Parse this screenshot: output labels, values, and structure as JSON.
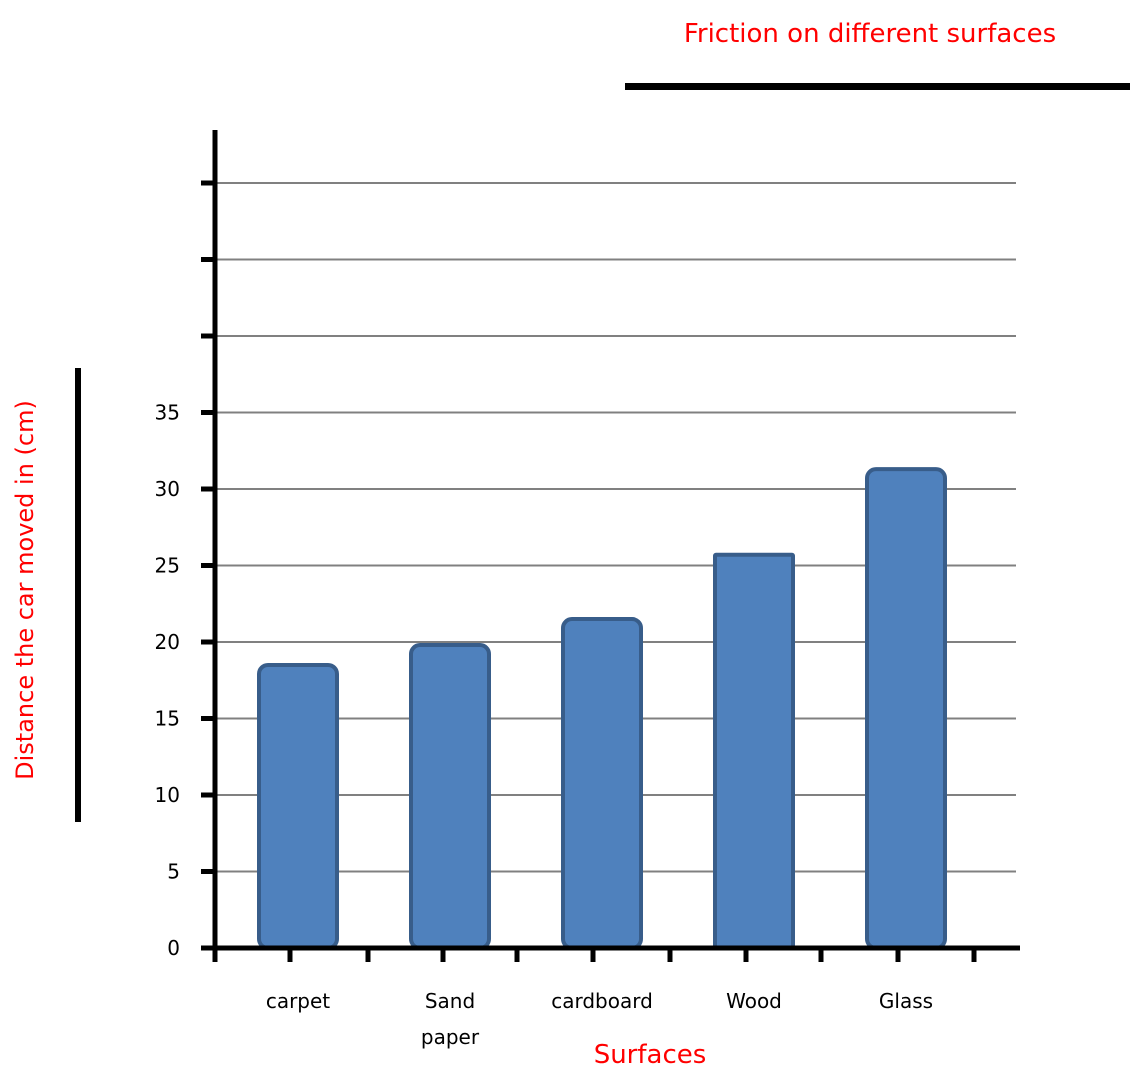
{
  "chart_data": {
    "type": "bar",
    "title": "Friction on different surfaces",
    "xlabel": "Surfaces",
    "ylabel": "Distance the car moved in (cm)",
    "categories": [
      "carpet",
      "Sand paper",
      "cardboard",
      "Wood",
      "Glass"
    ],
    "category_lines": [
      [
        "carpet"
      ],
      [
        "Sand",
        "paper"
      ],
      [
        "cardboard"
      ],
      [
        "Wood"
      ],
      [
        "Glass"
      ]
    ],
    "values": [
      18.5,
      19.8,
      21.5,
      25.7,
      31.3
    ],
    "yticks": [
      0,
      5,
      10,
      15,
      20,
      25,
      30,
      35
    ],
    "ylim": [
      0,
      50
    ],
    "grid": true,
    "colors": {
      "bar_fill": "#4f81bd",
      "bar_stroke": "#385d8a",
      "label_red": "#ff0000",
      "axis": "#000000",
      "grid": "#808080"
    }
  }
}
